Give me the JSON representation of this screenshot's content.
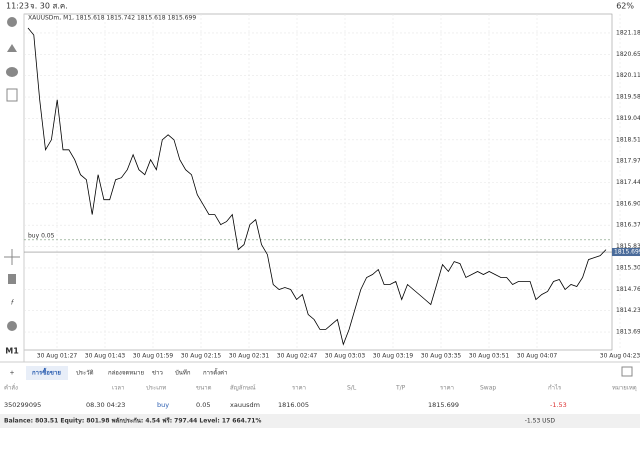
{
  "status_bar": {
    "time": "11:23",
    "date": "จ. 30 ส.ค.",
    "battery": "62%"
  },
  "toolbar": {
    "timeframe": "M1"
  },
  "chart_data": {
    "type": "line",
    "title": "XAUUSDm, M1, 1815.618 1815.742 1815.618 1815.699",
    "series": [
      {
        "color": "#000000",
        "values": [
          1821.31,
          1821.135,
          1819.51,
          1818.26,
          1818.51,
          1819.51,
          1818.26,
          1818.26,
          1818.01,
          1817.635,
          1817.51,
          1816.635,
          1817.635,
          1817.01,
          1817.01,
          1817.51,
          1817.56,
          1817.76,
          1818.135,
          1817.76,
          1817.635,
          1818.01,
          1817.76,
          1818.51,
          1818.635,
          1818.51,
          1818.01,
          1817.76,
          1817.635,
          1817.135,
          1816.885,
          1816.635,
          1816.635,
          1816.385,
          1816.46,
          1816.635,
          1815.76,
          1815.885,
          1816.385,
          1816.51,
          1815.885,
          1815.635,
          1814.885,
          1814.76,
          1814.81,
          1814.76,
          1814.51,
          1814.635,
          1814.135,
          1814.01,
          1813.76,
          1813.76,
          1813.885,
          1814.01,
          1813.385,
          1813.76,
          1814.26,
          1814.76,
          1815.06,
          1815.135,
          1815.26,
          1814.885,
          1814.885,
          1814.96,
          1814.51,
          1814.885,
          1814.76,
          1814.635,
          1814.51,
          1814.385,
          1814.885,
          1815.385,
          1815.21,
          1815.46,
          1815.41,
          1815.06,
          1815.135,
          1815.21,
          1815.135,
          1815.21,
          1815.135,
          1815.06,
          1815.06,
          1814.885,
          1814.96,
          1814.96,
          1814.96,
          1814.51,
          1814.635,
          1814.71,
          1814.96,
          1815.01,
          1814.76,
          1814.885,
          1814.835,
          1815.06,
          1815.51,
          1815.56,
          1815.61,
          1815.76
        ]
      }
    ],
    "ylim": [
      1813.245,
      1821.66
    ],
    "yticks": [
      1821.185,
      {
        "value": 1820.65,
        "label": "1820.650"
      },
      1820.115,
      {
        "value": 1819.58,
        "label": "1819.580"
      },
      1819.045,
      {
        "value": 1818.51,
        "label": "1818.510"
      },
      1817.975,
      {
        "value": 1817.44,
        "label": "1817.440"
      },
      1816.905,
      {
        "value": 1816.37,
        "label": "1816.370"
      },
      1815.835,
      {
        "value": 1815.3,
        "label": "1815.300"
      },
      1814.765,
      {
        "value": 1814.23,
        "label": "1814.230"
      },
      1813.695
    ],
    "xtick_labels": [
      "30 Aug 01:27",
      "30 Aug 01:43",
      "30 Aug 01:59",
      "30 Aug 02:15",
      "30 Aug 02:31",
      "30 Aug 02:47",
      "30 Aug 03:03",
      "30 Aug 03:19",
      "30 Aug 03:35",
      "30 Aug 03:51",
      "30 Aug 04:07",
      "30 Aug 04:23"
    ],
    "grid": true,
    "price_line": 1815.699,
    "order_line": {
      "label": "buy 0.05",
      "value": 1816.005
    }
  },
  "tabs": [
    "การซื้อขาย",
    "ประวัติ",
    "กล่องจดหมาย",
    "ข่าว",
    "บันทึก",
    "การตั้งค่า"
  ],
  "table": {
    "headers": [
      "คำสั่ง",
      "เวลา",
      "ประเภท",
      "ขนาด",
      "สัญลักษณ์",
      "ราคา",
      "S/L",
      "T/P",
      "ราคา",
      "Swap",
      "กำไร",
      "หมายเหตุ"
    ],
    "row": [
      "350299095",
      "08.30 04:23",
      "buy",
      "0.05",
      "xauusdm",
      "1816.005",
      "",
      "",
      "1815.699",
      "",
      "-1.53",
      ""
    ]
  },
  "balance": {
    "text": "Balance: 803.51 Equity: 801.98 พลักประกัน: 4.54 ฟรี: 797.44 Level: 17 664.71%",
    "profit": "-1.53 USD"
  }
}
